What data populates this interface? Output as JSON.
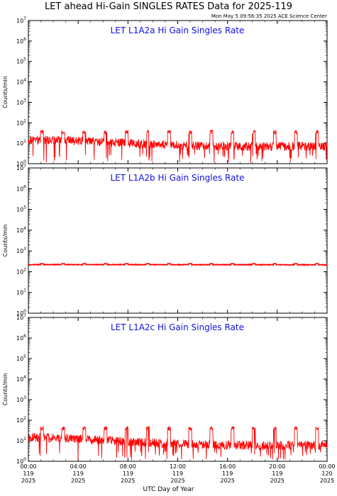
{
  "title": "LET ahead Hi-Gain SINGLES RATES Data for 2025-119",
  "timestamp": "Mon May  5 09:56:35 2025 ACE Science Center",
  "x_axis_label": "UTC Day of Year",
  "y_axis_label": "Counts/min",
  "colors": {
    "series": "#ff0000",
    "panel_title": "#1010e0",
    "axes": "#000000"
  },
  "chart_data": [
    {
      "type": "line",
      "title": "LET L1A2a Hi Gain Singles Rate",
      "ylabel": "Counts/min",
      "yscale": "log",
      "ylim": [
        1,
        10000000
      ],
      "xlim_hours": [
        0,
        24
      ],
      "y_tick_labels": [
        "10^0",
        "10^1",
        "10^2",
        "10^3",
        "10^4",
        "10^5",
        "10^6",
        "10^7"
      ],
      "series": [
        {
          "baseline_by_hour": [
            [
              0,
              15
            ],
            [
              4,
              13
            ],
            [
              8,
              10
            ],
            [
              12,
              8
            ],
            [
              16,
              7
            ],
            [
              20,
              7
            ],
            [
              24,
              7
            ]
          ],
          "spike_hours": [
            1.1,
            2.8,
            4.5,
            6.2,
            7.9,
            9.6,
            11.3,
            13.0,
            14.7,
            16.4,
            18.1,
            19.8,
            21.5,
            23.2
          ],
          "spike_peak": 40,
          "dropout_min": 1
        }
      ]
    },
    {
      "type": "line",
      "title": "LET L1A2b Hi Gain Singles Rate",
      "ylabel": "Counts/min",
      "yscale": "log",
      "ylim": [
        1,
        10000000
      ],
      "xlim_hours": [
        0,
        24
      ],
      "y_tick_labels": [
        "10^0",
        "10^1",
        "10^2",
        "10^3",
        "10^4",
        "10^5",
        "10^6",
        "10^7"
      ],
      "series": [
        {
          "baseline_by_hour": [
            [
              0,
              220
            ],
            [
              24,
              215
            ]
          ],
          "spike_hours": [
            1.1,
            2.8,
            4.5,
            6.2,
            7.9,
            9.6,
            11.3,
            13.0,
            14.7,
            16.4,
            18.1,
            19.8,
            21.5,
            23.2
          ],
          "spike_peak": 245,
          "dropout_min": 200
        }
      ]
    },
    {
      "type": "line",
      "title": "LET L1A2c Hi Gain Singles Rate",
      "ylabel": "Counts/min",
      "yscale": "log",
      "ylim": [
        1,
        10000000
      ],
      "xlim_hours": [
        0,
        24
      ],
      "y_tick_labels": [
        "10^0",
        "10^1",
        "10^2",
        "10^3",
        "10^4",
        "10^5",
        "10^6",
        "10^7"
      ],
      "series": [
        {
          "baseline_by_hour": [
            [
              0,
              15
            ],
            [
              4,
              12
            ],
            [
              8,
              9
            ],
            [
              12,
              7
            ],
            [
              16,
              6
            ],
            [
              20,
              6
            ],
            [
              24,
              6
            ]
          ],
          "spike_hours": [
            1.1,
            2.8,
            4.5,
            6.2,
            7.9,
            9.6,
            11.3,
            13.0,
            14.7,
            16.4,
            18.1,
            19.8,
            21.5,
            23.2
          ],
          "spike_peak": 45,
          "dropout_min": 1
        }
      ]
    }
  ],
  "x_ticks": [
    {
      "hour": 0,
      "time": "00:00",
      "day": "119",
      "year": "2025"
    },
    {
      "hour": 4,
      "time": "04:00",
      "day": "119",
      "year": "2025"
    },
    {
      "hour": 8,
      "time": "08:00",
      "day": "119",
      "year": "2025"
    },
    {
      "hour": 12,
      "time": "12:00",
      "day": "119",
      "year": "2025"
    },
    {
      "hour": 16,
      "time": "16:00",
      "day": "119",
      "year": "2025"
    },
    {
      "hour": 20,
      "time": "20:00",
      "day": "119",
      "year": "2025"
    },
    {
      "hour": 24,
      "time": "00:00",
      "day": "120",
      "year": "2025"
    }
  ]
}
